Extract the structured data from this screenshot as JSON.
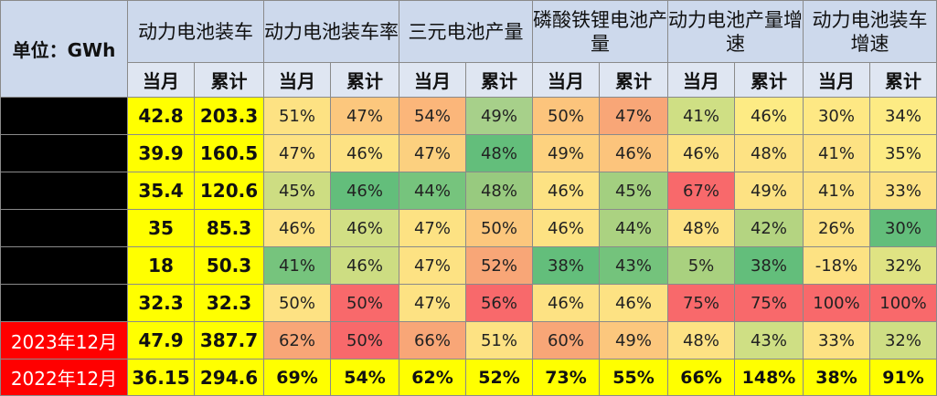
{
  "header": {
    "unit_label": "单位：GWh",
    "groups": [
      "动力电池装车",
      "动力电池装车率",
      "三元电池产量",
      "磷酸铁锂电池产量",
      "动力电池产量增速",
      "动力电池装车增速"
    ],
    "sub": [
      "当月",
      "累计"
    ]
  },
  "rows": [
    {
      "label": "",
      "label_style": "black",
      "monthly": "42.8",
      "cumulative": "203.3",
      "cells": [
        [
          "51%",
          "#fde283"
        ],
        [
          "47%",
          "#fcc77d"
        ],
        [
          "54%",
          "#fbb67a"
        ],
        [
          "49%",
          "#a7d08a"
        ],
        [
          "50%",
          "#fcc47c"
        ],
        [
          "47%",
          "#f8a677"
        ],
        [
          "41%",
          "#cfdf84"
        ],
        [
          "46%",
          "#fdeb84"
        ],
        [
          "30%",
          "#fee884"
        ],
        [
          "34%",
          "#fdeb84"
        ]
      ]
    },
    {
      "label": "",
      "label_style": "black",
      "monthly": "39.9",
      "cumulative": "160.5",
      "cells": [
        [
          "47%",
          "#fde283"
        ],
        [
          "46%",
          "#fde283"
        ],
        [
          "47%",
          "#fcd07f"
        ],
        [
          "48%",
          "#63be7b"
        ],
        [
          "49%",
          "#fdd27f"
        ],
        [
          "46%",
          "#fcc47c"
        ],
        [
          "46%",
          "#fde283"
        ],
        [
          "48%",
          "#fde283"
        ],
        [
          "41%",
          "#fde283"
        ],
        [
          "35%",
          "#fdeb84"
        ]
      ]
    },
    {
      "label": "",
      "label_style": "black",
      "monthly": "35.4",
      "cumulative": "120.6",
      "cells": [
        [
          "45%",
          "#cddd82"
        ],
        [
          "46%",
          "#63be7b"
        ],
        [
          "44%",
          "#76c47d"
        ],
        [
          "48%",
          "#98ca7f"
        ],
        [
          "46%",
          "#fde283"
        ],
        [
          "45%",
          "#a3cf80"
        ],
        [
          "67%",
          "#f8696b"
        ],
        [
          "49%",
          "#fde283"
        ],
        [
          "41%",
          "#fde283"
        ],
        [
          "33%",
          "#fde283"
        ]
      ]
    },
    {
      "label": "",
      "label_style": "black",
      "monthly": "35",
      "cumulative": "85.3",
      "cells": [
        [
          "46%",
          "#fde283"
        ],
        [
          "46%",
          "#d1df84"
        ],
        [
          "47%",
          "#fde283"
        ],
        [
          "50%",
          "#fcc77d"
        ],
        [
          "46%",
          "#fde283"
        ],
        [
          "44%",
          "#abd281"
        ],
        [
          "48%",
          "#fde283"
        ],
        [
          "42%",
          "#b4d481"
        ],
        [
          "26%",
          "#fde283"
        ],
        [
          "30%",
          "#63be7b"
        ]
      ]
    },
    {
      "label": "",
      "label_style": "black",
      "monthly": "18",
      "cumulative": "50.3",
      "cells": [
        [
          "41%",
          "#76c47d"
        ],
        [
          "46%",
          "#cddd82"
        ],
        [
          "47%",
          "#fde283"
        ],
        [
          "52%",
          "#f8a677"
        ],
        [
          "38%",
          "#63be7b"
        ],
        [
          "43%",
          "#74c37c"
        ],
        [
          "5%",
          "#a9d17f"
        ],
        [
          "38%",
          "#63be7b"
        ],
        [
          "-18%",
          "#fde283"
        ],
        [
          "32%",
          "#dfe383"
        ]
      ]
    },
    {
      "label": "",
      "label_style": "black",
      "monthly": "32.3",
      "cumulative": "32.3",
      "cells": [
        [
          "50%",
          "#fde283"
        ],
        [
          "50%",
          "#f8696b"
        ],
        [
          "47%",
          "#fde283"
        ],
        [
          "56%",
          "#f8696b"
        ],
        [
          "46%",
          "#fde283"
        ],
        [
          "46%",
          "#fde283"
        ],
        [
          "75%",
          "#f8696b"
        ],
        [
          "75%",
          "#f8696b"
        ],
        [
          "100%",
          "#f8696b"
        ],
        [
          "100%",
          "#f8696b"
        ]
      ]
    },
    {
      "label": "2023年12月",
      "label_style": "red",
      "monthly": "47.9",
      "cumulative": "387.7",
      "cells": [
        [
          "62%",
          "#f8a677"
        ],
        [
          "50%",
          "#f8696b"
        ],
        [
          "66%",
          "#f8a677"
        ],
        [
          "51%",
          "#fde283"
        ],
        [
          "60%",
          "#f8a677"
        ],
        [
          "49%",
          "#fcc77d"
        ],
        [
          "48%",
          "#fde283"
        ],
        [
          "43%",
          "#cfdf84"
        ],
        [
          "33%",
          "#fde283"
        ],
        [
          "32%",
          "#cfdf84"
        ]
      ]
    },
    {
      "label": "2022年12月",
      "label_style": "red",
      "monthly": "36.15",
      "cumulative": "294.6",
      "cells": [
        [
          "69%",
          "#ffff00"
        ],
        [
          "54%",
          "#ffff00"
        ],
        [
          "62%",
          "#ffff00"
        ],
        [
          "52%",
          "#ffff00"
        ],
        [
          "73%",
          "#ffff00"
        ],
        [
          "55%",
          "#ffff00"
        ],
        [
          "66%",
          "#ffff00"
        ],
        [
          "148%",
          "#ffff00"
        ],
        [
          "38%",
          "#ffff00"
        ],
        [
          "91%",
          "#ffff00"
        ]
      ]
    }
  ]
}
